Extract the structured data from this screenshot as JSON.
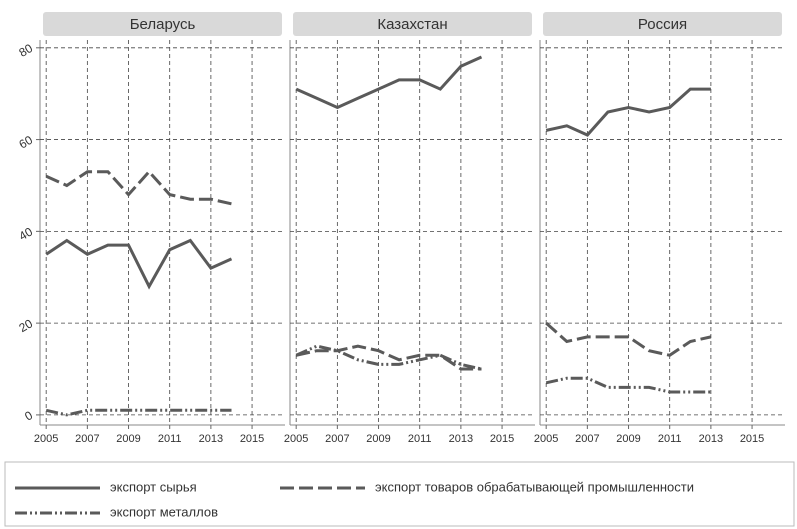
{
  "chart_data": {
    "type": "line",
    "x": [
      2005,
      2006,
      2007,
      2008,
      2009,
      2010,
      2011,
      2012,
      2013,
      2014
    ],
    "xlim": [
      2004.7,
      2016.6
    ],
    "xticks": [
      2005,
      2007,
      2009,
      2011,
      2013,
      2015
    ],
    "ylim": [
      -2.2,
      81.7
    ],
    "yticks": [
      0,
      20,
      40,
      60,
      80
    ],
    "grid": true,
    "legend_series": [
      {
        "name": "экспорт сырья",
        "color": "#5a5a5a",
        "dash": "solid"
      },
      {
        "name": "экспорт товаров обрабатывающей промышленности",
        "color": "#5a5a5a",
        "dash": "dashed"
      },
      {
        "name": "экспорт металлов",
        "color": "#5a5a5a",
        "dash": "dashdotdot"
      }
    ],
    "panels": [
      {
        "title": "Беларусь",
        "series": [
          {
            "values": [
              35,
              38,
              35,
              37,
              37,
              28,
              36,
              38,
              32,
              34
            ]
          },
          {
            "values": [
              52,
              50,
              53,
              53,
              48,
              53,
              48,
              47,
              47,
              46
            ]
          },
          {
            "values": [
              1,
              0,
              1,
              1,
              1,
              1,
              1,
              1,
              1,
              1
            ]
          }
        ]
      },
      {
        "title": "Казахстан",
        "series": [
          {
            "values": [
              71,
              69,
              67,
              69,
              71,
              73,
              73,
              71,
              76,
              78
            ]
          },
          {
            "values": [
              13,
              14,
              14,
              15,
              14,
              12,
              13,
              13,
              10,
              10
            ]
          },
          {
            "values": [
              13,
              15,
              14,
              12,
              11,
              11,
              12,
              13,
              11,
              10
            ]
          }
        ]
      },
      {
        "title": "Россия",
        "series": [
          {
            "values": [
              62,
              63,
              61,
              66,
              67,
              66,
              67,
              71,
              71,
              null
            ]
          },
          {
            "values": [
              20,
              16,
              17,
              17,
              17,
              14,
              13,
              16,
              17,
              null
            ]
          },
          {
            "values": [
              7,
              8,
              8,
              6,
              6,
              6,
              5,
              5,
              5,
              null
            ]
          }
        ]
      }
    ]
  }
}
